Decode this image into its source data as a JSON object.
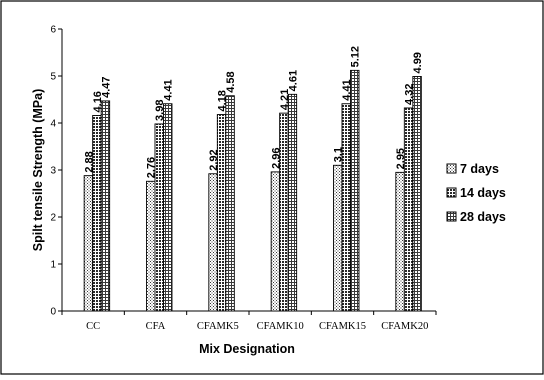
{
  "chart_data": {
    "type": "bar",
    "xlabel": "Mix Designation",
    "ylabel": "Spilt tensile  Strength (MPa)",
    "ylim": [
      0,
      6
    ],
    "yticks": [
      0,
      1,
      2,
      3,
      4,
      5,
      6
    ],
    "grid": false,
    "legend_position": "right",
    "categories": [
      "CC",
      "CFA",
      "CFAMK5",
      "CFAMK10",
      "CFAMK15",
      "CFAMK20"
    ],
    "series": [
      {
        "name": "7 days",
        "pattern": "dots",
        "values": [
          2.88,
          2.76,
          2.92,
          2.96,
          3.1,
          2.95
        ],
        "labels": [
          "2.88",
          "2.76",
          "2.92",
          "2.96",
          "3.1",
          "2.95"
        ]
      },
      {
        "name": "14 days",
        "pattern": "crosshatch",
        "values": [
          4.16,
          3.98,
          4.18,
          4.21,
          4.41,
          4.32
        ],
        "labels": [
          "4.16",
          "3.98",
          "4.18",
          "4.21",
          "4.41",
          "4.32"
        ]
      },
      {
        "name": "28 days",
        "pattern": "grid",
        "values": [
          4.47,
          4.41,
          4.58,
          4.61,
          5.12,
          4.99
        ],
        "labels": [
          "4.47",
          "4.41",
          "4.58",
          "4.61",
          "5.12",
          "4.99"
        ]
      }
    ],
    "colors": {
      "bar_fill": "#ffffff",
      "bar_stroke": "#000000",
      "pattern": "#3a3a3a",
      "border": "#000000"
    }
  }
}
